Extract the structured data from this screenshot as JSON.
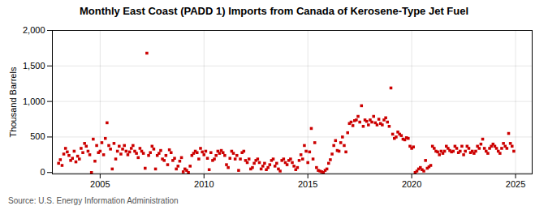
{
  "chart_data": {
    "type": "scatter",
    "title": "Monthly East Coast (PADD 1) Imports from Canada of Kerosene-Type Jet Fuel",
    "ylabel": "Thousand Barrels",
    "source": "Source: U.S. Energy Information Administration",
    "color": "#cc0000",
    "marker": "square",
    "grid": true,
    "xlim": [
      2002.7,
      2025.8
    ],
    "ylim": [
      -20,
      2000
    ],
    "xticks": [
      2005,
      2010,
      2015,
      2020,
      2025
    ],
    "yticks": [
      0,
      500,
      {
        "value": 1000,
        "label": "1,000"
      },
      {
        "value": 1500,
        "label": "1,500"
      },
      {
        "value": 2000,
        "label": "2,000"
      }
    ],
    "x": [
      2003.0,
      2003.083,
      2003.167,
      2003.25,
      2003.333,
      2003.417,
      2003.5,
      2003.583,
      2003.667,
      2003.75,
      2003.833,
      2003.917,
      2004.0,
      2004.083,
      2004.167,
      2004.25,
      2004.333,
      2004.417,
      2004.5,
      2004.583,
      2004.667,
      2004.75,
      2004.833,
      2004.917,
      2005.0,
      2005.083,
      2005.167,
      2005.25,
      2005.333,
      2005.417,
      2005.5,
      2005.583,
      2005.667,
      2005.75,
      2005.833,
      2005.917,
      2006.0,
      2006.083,
      2006.167,
      2006.25,
      2006.333,
      2006.417,
      2006.5,
      2006.583,
      2006.667,
      2006.75,
      2006.833,
      2006.917,
      2007.0,
      2007.083,
      2007.167,
      2007.25,
      2007.333,
      2007.417,
      2007.5,
      2007.583,
      2007.667,
      2007.75,
      2007.833,
      2007.917,
      2008.0,
      2008.083,
      2008.167,
      2008.25,
      2008.333,
      2008.417,
      2008.5,
      2008.583,
      2008.667,
      2008.75,
      2008.833,
      2008.917,
      2009.0,
      2009.083,
      2009.167,
      2009.25,
      2009.333,
      2009.417,
      2009.5,
      2009.583,
      2009.667,
      2009.75,
      2009.833,
      2009.917,
      2010.0,
      2010.083,
      2010.167,
      2010.25,
      2010.333,
      2010.417,
      2010.5,
      2010.583,
      2010.667,
      2010.75,
      2010.833,
      2010.917,
      2011.0,
      2011.083,
      2011.167,
      2011.25,
      2011.333,
      2011.417,
      2011.5,
      2011.583,
      2011.667,
      2011.75,
      2011.833,
      2011.917,
      2012.0,
      2012.083,
      2012.167,
      2012.25,
      2012.333,
      2012.417,
      2012.5,
      2012.583,
      2012.667,
      2012.75,
      2012.833,
      2012.917,
      2013.0,
      2013.083,
      2013.167,
      2013.25,
      2013.333,
      2013.417,
      2013.5,
      2013.583,
      2013.667,
      2013.75,
      2013.833,
      2013.917,
      2014.0,
      2014.083,
      2014.167,
      2014.25,
      2014.333,
      2014.417,
      2014.5,
      2014.583,
      2014.667,
      2014.75,
      2014.833,
      2014.917,
      2015.0,
      2015.083,
      2015.167,
      2015.25,
      2015.333,
      2015.417,
      2015.5,
      2015.583,
      2015.667,
      2015.75,
      2015.833,
      2015.917,
      2016.0,
      2016.083,
      2016.167,
      2016.25,
      2016.333,
      2016.417,
      2016.5,
      2016.583,
      2016.667,
      2016.75,
      2016.833,
      2016.917,
      2017.0,
      2017.083,
      2017.167,
      2017.25,
      2017.333,
      2017.417,
      2017.5,
      2017.583,
      2017.667,
      2017.75,
      2017.833,
      2017.917,
      2018.0,
      2018.083,
      2018.167,
      2018.25,
      2018.333,
      2018.417,
      2018.5,
      2018.583,
      2018.667,
      2018.75,
      2018.833,
      2018.917,
      2019.0,
      2019.083,
      2019.167,
      2019.25,
      2019.333,
      2019.417,
      2019.5,
      2019.583,
      2019.667,
      2019.75,
      2019.833,
      2019.917,
      2020.0,
      2020.083,
      2020.167,
      2020.25,
      2020.333,
      2020.417,
      2020.5,
      2020.583,
      2020.667,
      2020.75,
      2020.833,
      2020.917,
      2021.0,
      2021.083,
      2021.167,
      2021.25,
      2021.333,
      2021.417,
      2021.5,
      2021.583,
      2021.667,
      2021.75,
      2021.833,
      2021.917,
      2022.0,
      2022.083,
      2022.167,
      2022.25,
      2022.333,
      2022.417,
      2022.5,
      2022.583,
      2022.667,
      2022.75,
      2022.833,
      2022.917,
      2023.0,
      2023.083,
      2023.167,
      2023.25,
      2023.333,
      2023.417,
      2023.5,
      2023.583,
      2023.667,
      2023.75,
      2023.833,
      2023.917,
      2024.0,
      2024.083,
      2024.167,
      2024.25,
      2024.333,
      2024.417,
      2024.5,
      2024.583,
      2024.667,
      2024.75,
      2024.833,
      2024.917
    ],
    "values": [
      130,
      180,
      100,
      260,
      340,
      290,
      240,
      170,
      200,
      300,
      150,
      230,
      190,
      340,
      280,
      410,
      370,
      300,
      250,
      0,
      470,
      160,
      380,
      280,
      300,
      420,
      250,
      480,
      700,
      380,
      330,
      50,
      410,
      190,
      300,
      370,
      260,
      330,
      380,
      300,
      250,
      290,
      340,
      380,
      300,
      270,
      210,
      340,
      300,
      270,
      60,
      1680,
      240,
      280,
      370,
      330,
      50,
      240,
      270,
      310,
      190,
      170,
      240,
      110,
      320,
      280,
      170,
      200,
      50,
      90,
      160,
      210,
      10,
      50,
      30,
      0,
      90,
      240,
      270,
      300,
      280,
      190,
      340,
      290,
      250,
      300,
      200,
      40,
      280,
      170,
      190,
      240,
      300,
      270,
      310,
      280,
      240,
      110,
      70,
      200,
      300,
      270,
      190,
      240,
      30,
      190,
      280,
      300,
      170,
      140,
      190,
      50,
      70,
      130,
      170,
      190,
      140,
      50,
      90,
      130,
      40,
      70,
      110,
      170,
      190,
      90,
      130,
      50,
      20,
      170,
      190,
      140,
      110,
      170,
      190,
      140,
      90,
      40,
      70,
      170,
      250,
      190,
      380,
      300,
      140,
      290,
      620,
      190,
      420,
      70,
      30,
      20,
      10,
      0,
      30,
      50,
      130,
      180,
      260,
      380,
      450,
      310,
      300,
      420,
      500,
      380,
      290,
      560,
      690,
      710,
      660,
      730,
      740,
      790,
      710,
      940,
      650,
      740,
      720,
      670,
      740,
      710,
      790,
      700,
      670,
      750,
      690,
      670,
      740,
      770,
      710,
      650,
      1190,
      540,
      480,
      500,
      570,
      540,
      520,
      470,
      460,
      490,
      480,
      370,
      340,
      360,
      0,
      20,
      50,
      70,
      40,
      20,
      170,
      60,
      80,
      100,
      370,
      340,
      300,
      290,
      250,
      300,
      270,
      300,
      370,
      340,
      310,
      290,
      300,
      370,
      340,
      280,
      300,
      370,
      250,
      300,
      370,
      340,
      280,
      300,
      270,
      300,
      370,
      340,
      400,
      470,
      340,
      300,
      270,
      340,
      370,
      400,
      370,
      340,
      300,
      270,
      340,
      410,
      370,
      340,
      550,
      410,
      370,
      300
    ]
  }
}
